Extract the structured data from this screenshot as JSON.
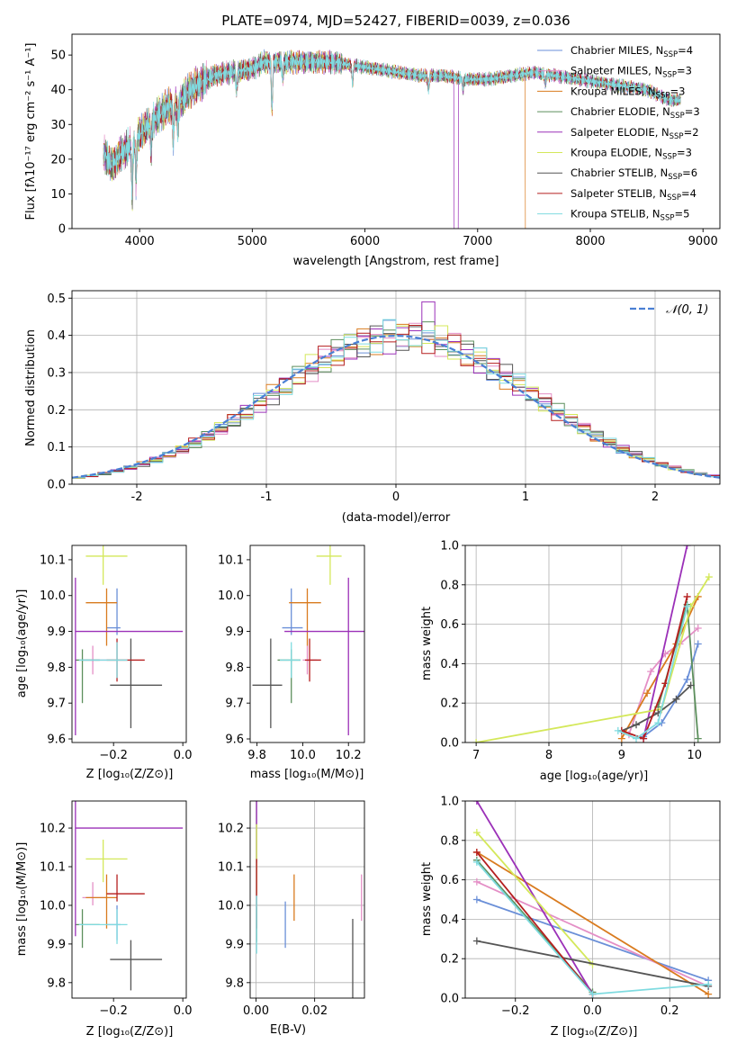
{
  "chart_data": [
    {
      "id": "spectrum",
      "type": "line",
      "title": "PLATE=0974, MJD=52427, FIBERID=0039, z=0.036",
      "xlabel": "wavelength [Angstrom, rest frame]",
      "ylabel": "Flux [fλ10⁻¹⁷ erg cm⁻² s⁻¹ A⁻¹]",
      "xlim": [
        3400,
        9150
      ],
      "ylim": [
        0,
        56
      ],
      "xticks": [
        4000,
        5000,
        6000,
        7000,
        8000,
        9000
      ],
      "yticks": [
        0,
        10,
        20,
        30,
        40,
        50
      ],
      "legend_position": "top-right",
      "legend": [
        {
          "label": "Chabrier MILES, N",
          "sub": "SSP",
          "suffix": "=4",
          "color": "#6a8fd8"
        },
        {
          "label": "Salpeter MILES, N",
          "sub": "SSP",
          "suffix": "=3",
          "color": "#e48fc6"
        },
        {
          "label": "Kroupa MILES, N",
          "sub": "SSP",
          "suffix": "=3",
          "color": "#d97b1f"
        },
        {
          "label": "Chabrier ELODIE, N",
          "sub": "SSP",
          "suffix": "=3",
          "color": "#5c8f5c"
        },
        {
          "label": "Salpeter ELODIE, N",
          "sub": "SSP",
          "suffix": "=2",
          "color": "#9b30b8"
        },
        {
          "label": "Kroupa ELODIE, N",
          "sub": "SSP",
          "suffix": "=3",
          "color": "#d4e85a"
        },
        {
          "label": "Chabrier STELIB, N",
          "sub": "SSP",
          "suffix": "=6",
          "color": "#555555"
        },
        {
          "label": "Salpeter STELIB, N",
          "sub": "SSP",
          "suffix": "=4",
          "color": "#b51f1f"
        },
        {
          "label": "Kroupa STELIB, N",
          "sub": "SSP",
          "suffix": "=5",
          "color": "#7fdbe0"
        }
      ],
      "continuum": [
        [
          3680,
          22
        ],
        [
          3750,
          18
        ],
        [
          3850,
          22
        ],
        [
          3950,
          25
        ],
        [
          4050,
          29
        ],
        [
          4150,
          32
        ],
        [
          4250,
          35
        ],
        [
          4350,
          36
        ],
        [
          4450,
          40
        ],
        [
          4550,
          42
        ],
        [
          4650,
          44
        ],
        [
          4800,
          45
        ],
        [
          5000,
          46
        ],
        [
          5100,
          48
        ],
        [
          5300,
          48
        ],
        [
          5500,
          48
        ],
        [
          5700,
          48
        ],
        [
          5900,
          47
        ],
        [
          6100,
          46
        ],
        [
          6300,
          45
        ],
        [
          6500,
          44
        ],
        [
          6700,
          44
        ],
        [
          6900,
          43
        ],
        [
          7100,
          43
        ],
        [
          7300,
          44
        ],
        [
          7500,
          45
        ],
        [
          7700,
          44
        ],
        [
          7900,
          43
        ],
        [
          8100,
          42
        ],
        [
          8300,
          41
        ],
        [
          8500,
          40
        ],
        [
          8700,
          37
        ]
      ],
      "features": [
        [
          3934,
          -15
        ],
        [
          3969,
          -12
        ],
        [
          4102,
          -8
        ],
        [
          4300,
          -10
        ],
        [
          4340,
          -7
        ],
        [
          4861,
          -6
        ],
        [
          5175,
          -14
        ],
        [
          5270,
          -5
        ],
        [
          5890,
          -5
        ],
        [
          6563,
          -4
        ],
        [
          6870,
          -3
        ],
        [
          7600,
          -3
        ]
      ]
    },
    {
      "id": "residuals",
      "type": "histogram",
      "xlabel": "(data-model)/error",
      "ylabel": "Normed distribution",
      "xlim": [
        -2.5,
        2.5
      ],
      "ylim": [
        0,
        0.52
      ],
      "xticks": [
        -2,
        -1,
        0,
        1,
        2
      ],
      "yticks": [
        0.0,
        0.1,
        0.2,
        0.3,
        0.4,
        0.5
      ],
      "grid": true,
      "legend_position": "top-right",
      "gauss_label": "𝒩(0, 1)",
      "bin_width": 0.1
    },
    {
      "id": "age-vs-Z",
      "type": "scatter",
      "xlabel": "Z [log₁₀(Z/Z⊙)]",
      "ylabel": "age  [log₁₀(age/yr)]",
      "xlim": [
        -0.32,
        0.01
      ],
      "ylim": [
        9.59,
        10.14
      ],
      "xticks": [
        -0.2,
        0.0
      ],
      "yticks": [
        9.6,
        9.7,
        9.8,
        9.9,
        10.0,
        10.1
      ]
    },
    {
      "id": "age-vs-mass",
      "type": "scatter",
      "xlabel": "mass [log₁₀(M/M⊙)]",
      "ylabel": "",
      "xlim": [
        9.77,
        10.27
      ],
      "ylim": [
        9.59,
        10.14
      ],
      "xticks": [
        9.8,
        10.0,
        10.2
      ],
      "yticks": [
        9.6,
        9.7,
        9.8,
        9.9,
        10.0,
        10.1
      ]
    },
    {
      "id": "weight-vs-age",
      "type": "line",
      "xlabel": "age  [log₁₀(age/yr)]",
      "ylabel": "mass weight",
      "xlim": [
        6.85,
        10.35
      ],
      "ylim": [
        0,
        1
      ],
      "xticks": [
        7,
        8,
        9,
        10
      ],
      "yticks": [
        0.0,
        0.2,
        0.4,
        0.6,
        0.8,
        1.0
      ],
      "grid": true
    },
    {
      "id": "mass-vs-Z",
      "type": "scatter",
      "xlabel": "Z [log₁₀(Z/Z⊙)]",
      "ylabel": "mass [log₁₀(M/M⊙)]",
      "xlim": [
        -0.32,
        0.01
      ],
      "ylim": [
        9.76,
        10.27
      ],
      "xticks": [
        -0.2,
        0.0
      ],
      "yticks": [
        9.8,
        9.9,
        10.0,
        10.1,
        10.2
      ]
    },
    {
      "id": "mass-vs-ebv",
      "type": "scatter",
      "xlabel": "E(B-V)",
      "ylabel": "",
      "xlim": [
        -0.002,
        0.037
      ],
      "ylim": [
        9.76,
        10.27
      ],
      "xticks": [
        0.0,
        0.02
      ],
      "yticks": [
        9.8,
        9.9,
        10.0,
        10.1,
        10.2
      ],
      "grid": true
    },
    {
      "id": "weight-vs-Z",
      "type": "line",
      "xlabel": "Z [log₁₀(Z/Z⊙)]",
      "ylabel": "mass weight",
      "xlim": [
        -0.33,
        0.33
      ],
      "ylim": [
        0,
        1
      ],
      "xticks": [
        -0.2,
        0.0,
        0.2
      ],
      "yticks": [
        0.0,
        0.2,
        0.4,
        0.6,
        0.8,
        1.0
      ],
      "grid": true
    }
  ],
  "models": [
    {
      "name": "Chabrier MILES",
      "color": "#6a8fd8",
      "age": 9.91,
      "age_err": [
        0.02,
        0.11
      ],
      "Z": -0.19,
      "Z_err": [
        0.03,
        0.01
      ],
      "mass": 9.95,
      "mass_err": [
        0.04,
        0.05
      ],
      "ebv": 0.01,
      "ebv_err": 0.004,
      "age_pts": [
        9.3,
        9.55,
        9.75,
        9.9,
        10.05
      ],
      "age_w": [
        0.03,
        0.1,
        0.22,
        0.32,
        0.5
      ],
      "z_pts": [
        -0.3,
        0.3
      ],
      "z_w": [
        0.5,
        0.09
      ]
    },
    {
      "name": "Salpeter MILES",
      "color": "#e48fc6",
      "age": 9.82,
      "age_err": [
        0.04,
        0.04
      ],
      "Z": -0.26,
      "Z_err": [
        0.03,
        0.04
      ],
      "mass": 10.02,
      "mass_err": [
        0.02,
        0.04
      ],
      "ebv": 0.036,
      "ebv_err": 0.004,
      "age_pts": [
        9.1,
        9.4,
        9.6,
        9.8,
        10.05
      ],
      "age_w": [
        0.04,
        0.36,
        0.45,
        0.5,
        0.58
      ],
      "z_pts": [
        -0.3,
        0.3
      ],
      "z_w": [
        0.59,
        0.06
      ]
    },
    {
      "name": "Kroupa MILES",
      "color": "#d97b1f",
      "age": 9.98,
      "age_err": [
        0.12,
        0.04
      ],
      "Z": -0.22,
      "Z_err": [
        0.06,
        0.03
      ],
      "mass": 10.02,
      "mass_err": [
        0.08,
        0.06
      ],
      "ebv": 0.013,
      "ebv_err": 0.004,
      "age_pts": [
        9.0,
        9.35,
        9.75,
        10.05
      ],
      "age_w": [
        0.02,
        0.25,
        0.5,
        0.74
      ],
      "z_pts": [
        -0.3,
        0.3
      ],
      "z_w": [
        0.74,
        0.02
      ]
    },
    {
      "name": "Chabrier ELODIE",
      "color": "#5c8f5c",
      "age": 9.82,
      "age_err": [
        0.12,
        0.03
      ],
      "Z": -0.29,
      "Z_err": [
        0.02,
        0.05
      ],
      "mass": 9.95,
      "mass_err": [
        0.06,
        0.04
      ],
      "ebv": 0.0002,
      "ebv_err": 0.003,
      "age_pts": [
        9.5,
        9.9,
        10.05
      ],
      "age_w": [
        0.18,
        0.7,
        0.02
      ],
      "z_pts": [
        -0.3,
        0.0
      ],
      "z_w": [
        0.7,
        0.03
      ]
    },
    {
      "name": "Salpeter ELODIE",
      "color": "#9b30b8",
      "age": 9.9,
      "age_err": [
        0.29,
        0.15
      ],
      "Z": -0.31,
      "Z_err": [
        0.0,
        0.31
      ],
      "mass": 10.2,
      "mass_err": [
        0.28,
        0.14
      ],
      "ebv": 0.0002,
      "ebv_err": 0.006,
      "age_pts": [
        9.3,
        9.9
      ],
      "age_w": [
        0.02,
        1.0
      ],
      "z_pts": [
        -0.3,
        0.0
      ],
      "z_w": [
        1.0,
        0.02
      ]
    },
    {
      "name": "Kroupa ELODIE",
      "color": "#d4e85a",
      "age": 10.11,
      "age_err": [
        0.08,
        0.05
      ],
      "Z": -0.23,
      "Z_err": [
        0.05,
        0.07
      ],
      "mass": 10.12,
      "mass_err": [
        0.06,
        0.05
      ],
      "ebv": 0.0002,
      "ebv_err": 0.006,
      "age_pts": [
        7.0,
        9.55,
        9.95,
        10.2
      ],
      "age_w": [
        0.0,
        0.17,
        0.69,
        0.84
      ],
      "z_pts": [
        -0.3,
        0.0
      ],
      "z_w": [
        0.84,
        0.17
      ]
    },
    {
      "name": "Chabrier STELIB",
      "color": "#555555",
      "age": 9.75,
      "age_err": [
        0.12,
        0.13
      ],
      "Z": -0.15,
      "Z_err": [
        0.06,
        0.09
      ],
      "mass": 9.86,
      "mass_err": [
        0.08,
        0.05
      ],
      "ebv": 0.033,
      "ebv_err": 0.007,
      "age_pts": [
        9.0,
        9.2,
        9.5,
        9.75,
        9.95
      ],
      "age_w": [
        0.06,
        0.09,
        0.15,
        0.22,
        0.29
      ],
      "z_pts": [
        -0.3,
        0.3
      ],
      "z_w": [
        0.29,
        0.06
      ]
    },
    {
      "name": "Salpeter STELIB",
      "color": "#b51f1f",
      "age": 9.82,
      "age_err": [
        0.06,
        0.06
      ],
      "Z": -0.19,
      "Z_err": [
        0.03,
        0.08
      ],
      "mass": 10.03,
      "mass_err": [
        0.02,
        0.05
      ],
      "ebv": 0.0002,
      "ebv_err": 0.006,
      "age_pts": [
        9.0,
        9.3,
        9.6,
        9.9
      ],
      "age_w": [
        0.06,
        0.02,
        0.3,
        0.74
      ],
      "z_pts": [
        -0.3,
        0.0
      ],
      "z_w": [
        0.74,
        0.02
      ]
    },
    {
      "name": "Kroupa STELIB",
      "color": "#7fdbe0",
      "age": 9.82,
      "age_err": [
        0.05,
        0.05
      ],
      "Z": -0.19,
      "Z_err": [
        0.11,
        0.03
      ],
      "mass": 9.95,
      "mass_err": [
        0.05,
        0.04
      ],
      "ebv": 0.0002,
      "ebv_err": 0.005,
      "age_pts": [
        8.95,
        9.2,
        9.5,
        9.9
      ],
      "age_w": [
        0.06,
        0.02,
        0.1,
        0.69
      ],
      "z_pts": [
        -0.3,
        0.0,
        0.3
      ],
      "z_w": [
        0.69,
        0.02,
        0.07
      ]
    }
  ]
}
